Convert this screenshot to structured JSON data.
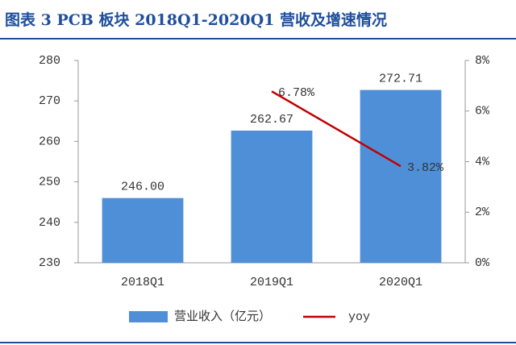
{
  "chart_data": {
    "type": "bar",
    "title": "图表 3   PCB 板块 2018Q1-2020Q1 营收及增速情况",
    "categories": [
      "2018Q1",
      "2019Q1",
      "2020Q1"
    ],
    "series": [
      {
        "name": "营业收入（亿元）",
        "type": "bar",
        "color": "#4f8fd8",
        "values": [
          246.0,
          262.67,
          272.71
        ],
        "value_labels": [
          "246.00",
          "262.67",
          "272.71"
        ]
      },
      {
        "name": "yoy",
        "type": "line",
        "axis": "y2",
        "color": "#c00000",
        "values": [
          null,
          6.78,
          3.82
        ],
        "value_labels": [
          null,
          "6.78%",
          "3.82%"
        ]
      }
    ],
    "ylim": [
      230,
      280
    ],
    "yticks": [
      230,
      240,
      250,
      260,
      270,
      280
    ],
    "y2lim": [
      0,
      8
    ],
    "y2ticks": [
      {
        "value": 0,
        "label": "0%"
      },
      {
        "value": 2,
        "label": "2%"
      },
      {
        "value": 4,
        "label": "4%"
      },
      {
        "value": 6,
        "label": "6%"
      },
      {
        "value": 8,
        "label": "8%"
      }
    ],
    "grid": false,
    "legend": "bottom"
  }
}
